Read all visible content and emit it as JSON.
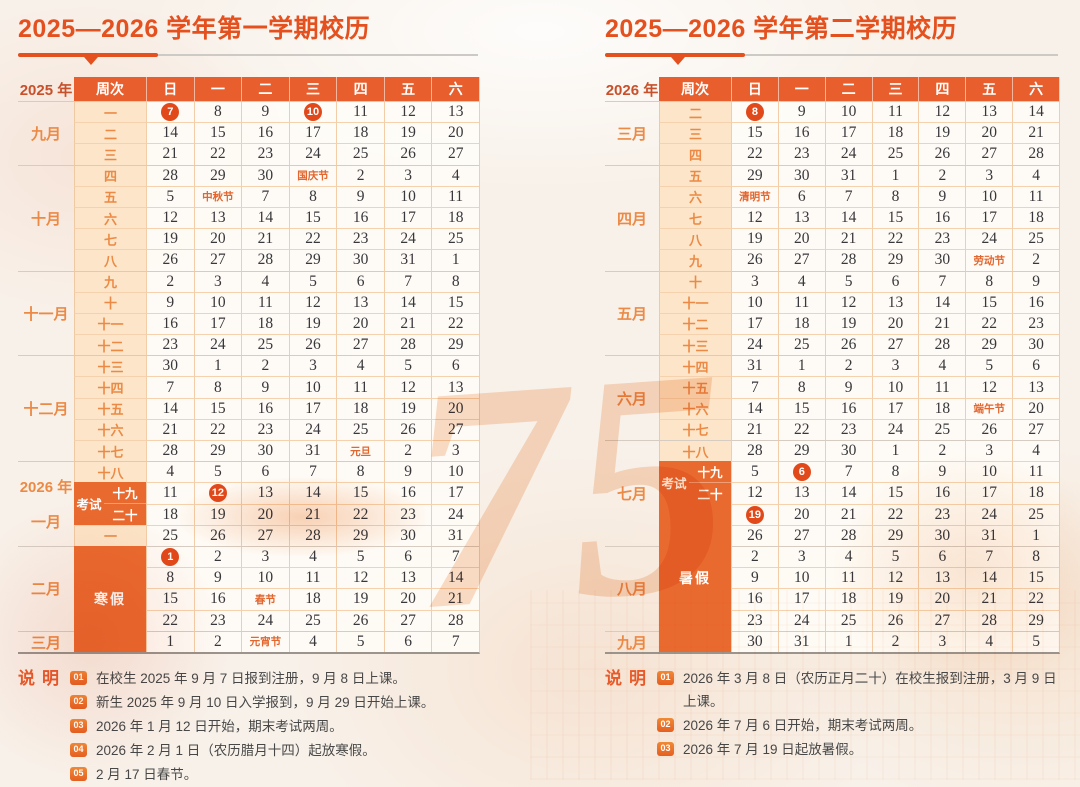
{
  "colors": {
    "accent": "#e75c2a",
    "header_bg": "#e85e2c",
    "circle_bg": "#e1491a",
    "week_bg": "#fce5c8",
    "title": "#e4511f"
  },
  "watermark": {
    "numeral": "75"
  },
  "left": {
    "title": "2025—2026 学年第一学期校历",
    "year_header": "2025 年",
    "week_header": "周次",
    "day_headers": [
      "日",
      "一",
      "二",
      "三",
      "四",
      "五",
      "六"
    ],
    "months": [
      {
        "label": [
          "九月"
        ],
        "rows": 3
      },
      {
        "label": [
          "十月"
        ],
        "rows": 5
      },
      {
        "label": [
          "十一月"
        ],
        "rows": 4
      },
      {
        "label": [
          "十二月"
        ],
        "rows": 5
      },
      {
        "label": [
          "2026 年",
          "一月"
        ],
        "rows": 4
      },
      {
        "label": [
          "二月"
        ],
        "rows": 4
      },
      {
        "label": [
          "三月"
        ],
        "rows": 1
      }
    ],
    "rows": [
      {
        "week": "一",
        "days": [
          "7",
          "8",
          "9",
          "10",
          "11",
          "12",
          "13"
        ]
      },
      {
        "week": "二",
        "days": [
          "14",
          "15",
          "16",
          "17",
          "18",
          "19",
          "20"
        ]
      },
      {
        "week": "三",
        "days": [
          "21",
          "22",
          "23",
          "24",
          "25",
          "26",
          "27"
        ]
      },
      {
        "week": "四",
        "days": [
          "28",
          "29",
          "30",
          "国庆节",
          "2",
          "3",
          "4"
        ]
      },
      {
        "week": "五",
        "days": [
          "5",
          "中秋节",
          "7",
          "8",
          "9",
          "10",
          "11"
        ]
      },
      {
        "week": "六",
        "days": [
          "12",
          "13",
          "14",
          "15",
          "16",
          "17",
          "18"
        ]
      },
      {
        "week": "七",
        "days": [
          "19",
          "20",
          "21",
          "22",
          "23",
          "24",
          "25"
        ]
      },
      {
        "week": "八",
        "days": [
          "26",
          "27",
          "28",
          "29",
          "30",
          "31",
          "1"
        ]
      },
      {
        "week": "九",
        "days": [
          "2",
          "3",
          "4",
          "5",
          "6",
          "7",
          "8"
        ]
      },
      {
        "week": "十",
        "days": [
          "9",
          "10",
          "11",
          "12",
          "13",
          "14",
          "15"
        ]
      },
      {
        "week": "十一",
        "days": [
          "16",
          "17",
          "18",
          "19",
          "20",
          "21",
          "22"
        ]
      },
      {
        "week": "十二",
        "days": [
          "23",
          "24",
          "25",
          "26",
          "27",
          "28",
          "29"
        ]
      },
      {
        "week": "十三",
        "days": [
          "30",
          "1",
          "2",
          "3",
          "4",
          "5",
          "6"
        ]
      },
      {
        "week": "十四",
        "days": [
          "7",
          "8",
          "9",
          "10",
          "11",
          "12",
          "13"
        ]
      },
      {
        "week": "十五",
        "days": [
          "14",
          "15",
          "16",
          "17",
          "18",
          "19",
          "20"
        ]
      },
      {
        "week": "十六",
        "days": [
          "21",
          "22",
          "23",
          "24",
          "25",
          "26",
          "27"
        ]
      },
      {
        "week": "十七",
        "days": [
          "28",
          "29",
          "30",
          "31",
          "元旦",
          "2",
          "3"
        ]
      },
      {
        "week": "十八",
        "days": [
          "4",
          "5",
          "6",
          "7",
          "8",
          "9",
          "10"
        ]
      },
      {
        "week": "十九",
        "days": [
          "11",
          "12",
          "13",
          "14",
          "15",
          "16",
          "17"
        ]
      },
      {
        "week": "二十",
        "days": [
          "18",
          "19",
          "20",
          "21",
          "22",
          "23",
          "24"
        ]
      },
      {
        "week": "一",
        "days": [
          "25",
          "26",
          "27",
          "28",
          "29",
          "30",
          "31"
        ]
      },
      {
        "week": null,
        "days": [
          "1",
          "2",
          "3",
          "4",
          "5",
          "6",
          "7"
        ]
      },
      {
        "week": null,
        "days": [
          "8",
          "9",
          "10",
          "11",
          "12",
          "13",
          "14"
        ]
      },
      {
        "week": null,
        "days": [
          "15",
          "16",
          "春节",
          "18",
          "19",
          "20",
          "21"
        ]
      },
      {
        "week": null,
        "days": [
          "22",
          "23",
          "24",
          "25",
          "26",
          "27",
          "28"
        ]
      },
      {
        "week": null,
        "days": [
          "1",
          "2",
          "元宵节",
          "4",
          "5",
          "6",
          "7"
        ]
      }
    ],
    "circled": [
      [
        1,
        1
      ],
      [
        1,
        4
      ],
      [
        19,
        2
      ],
      [
        22,
        1
      ]
    ],
    "exam": {
      "label": "考试",
      "rows": [
        19,
        20
      ]
    },
    "vacation": {
      "label": "寒假",
      "start": 22,
      "end": 26
    },
    "notes_title": "说明",
    "notes": [
      {
        "num": "01",
        "text": "在校生 2025 年 9 月 7 日报到注册，9 月 8 日上课。"
      },
      {
        "num": "02",
        "text": "新生 2025 年 9 月 10 日入学报到，9 月 29 日开始上课。"
      },
      {
        "num": "03",
        "text": "2026 年 1 月 12 日开始，期末考试两周。"
      },
      {
        "num": "04",
        "text": "2026 年 2 月 1 日（农历腊月十四）起放寒假。"
      },
      {
        "num": "05",
        "text": "2 月 17 日春节。"
      }
    ]
  },
  "right": {
    "title": "2025—2026 学年第二学期校历",
    "year_header": "2026 年",
    "week_header": "周次",
    "day_headers": [
      "日",
      "一",
      "二",
      "三",
      "四",
      "五",
      "六"
    ],
    "months": [
      {
        "label": [
          "三月"
        ],
        "rows": 3
      },
      {
        "label": [
          "四月"
        ],
        "rows": 5
      },
      {
        "label": [
          "五月"
        ],
        "rows": 4
      },
      {
        "label": [
          "六月"
        ],
        "rows": 4
      },
      {
        "label": [
          "七月"
        ],
        "rows": 5
      },
      {
        "label": [
          "八月"
        ],
        "rows": 4
      },
      {
        "label": [
          "九月"
        ],
        "rows": 1
      }
    ],
    "rows": [
      {
        "week": "二",
        "days": [
          "8",
          "9",
          "10",
          "11",
          "12",
          "13",
          "14"
        ]
      },
      {
        "week": "三",
        "days": [
          "15",
          "16",
          "17",
          "18",
          "19",
          "20",
          "21"
        ]
      },
      {
        "week": "四",
        "days": [
          "22",
          "23",
          "24",
          "25",
          "26",
          "27",
          "28"
        ]
      },
      {
        "week": "五",
        "days": [
          "29",
          "30",
          "31",
          "1",
          "2",
          "3",
          "4"
        ]
      },
      {
        "week": "六",
        "days": [
          "清明节",
          "6",
          "7",
          "8",
          "9",
          "10",
          "11"
        ]
      },
      {
        "week": "七",
        "days": [
          "12",
          "13",
          "14",
          "15",
          "16",
          "17",
          "18"
        ]
      },
      {
        "week": "八",
        "days": [
          "19",
          "20",
          "21",
          "22",
          "23",
          "24",
          "25"
        ]
      },
      {
        "week": "九",
        "days": [
          "26",
          "27",
          "28",
          "29",
          "30",
          "劳动节",
          "2"
        ]
      },
      {
        "week": "十",
        "days": [
          "3",
          "4",
          "5",
          "6",
          "7",
          "8",
          "9"
        ]
      },
      {
        "week": "十一",
        "days": [
          "10",
          "11",
          "12",
          "13",
          "14",
          "15",
          "16"
        ]
      },
      {
        "week": "十二",
        "days": [
          "17",
          "18",
          "19",
          "20",
          "21",
          "22",
          "23"
        ]
      },
      {
        "week": "十三",
        "days": [
          "24",
          "25",
          "26",
          "27",
          "28",
          "29",
          "30"
        ]
      },
      {
        "week": "十四",
        "days": [
          "31",
          "1",
          "2",
          "3",
          "4",
          "5",
          "6"
        ]
      },
      {
        "week": "十五",
        "days": [
          "7",
          "8",
          "9",
          "10",
          "11",
          "12",
          "13"
        ]
      },
      {
        "week": "十六",
        "days": [
          "14",
          "15",
          "16",
          "17",
          "18",
          "端午节",
          "20"
        ]
      },
      {
        "week": "十七",
        "days": [
          "21",
          "22",
          "23",
          "24",
          "25",
          "26",
          "27"
        ]
      },
      {
        "week": "十八",
        "days": [
          "28",
          "29",
          "30",
          "1",
          "2",
          "3",
          "4"
        ]
      },
      {
        "week": "十九",
        "days": [
          "5",
          "6",
          "7",
          "8",
          "9",
          "10",
          "11"
        ]
      },
      {
        "week": "二十",
        "days": [
          "12",
          "13",
          "14",
          "15",
          "16",
          "17",
          "18"
        ]
      },
      {
        "week": null,
        "days": [
          "19",
          "20",
          "21",
          "22",
          "23",
          "24",
          "25"
        ]
      },
      {
        "week": null,
        "days": [
          "26",
          "27",
          "28",
          "29",
          "30",
          "31",
          "1"
        ]
      },
      {
        "week": null,
        "days": [
          "2",
          "3",
          "4",
          "5",
          "6",
          "7",
          "8"
        ]
      },
      {
        "week": null,
        "days": [
          "9",
          "10",
          "11",
          "12",
          "13",
          "14",
          "15"
        ]
      },
      {
        "week": null,
        "days": [
          "16",
          "17",
          "18",
          "19",
          "20",
          "21",
          "22"
        ]
      },
      {
        "week": null,
        "days": [
          "23",
          "24",
          "25",
          "26",
          "27",
          "28",
          "29"
        ]
      },
      {
        "week": null,
        "days": [
          "30",
          "31",
          "1",
          "2",
          "3",
          "4",
          "5"
        ]
      }
    ],
    "circled": [
      [
        1,
        1
      ],
      [
        18,
        2
      ],
      [
        20,
        1
      ]
    ],
    "exam": {
      "label": "考试",
      "rows": [
        18,
        19
      ]
    },
    "vacation": {
      "label": "暑假",
      "start": 20,
      "end": 26
    },
    "notes_title": "说明",
    "notes": [
      {
        "num": "01",
        "text": "2026 年 3 月 8 日（农历正月二十）在校生报到注册，3 月 9 日上课。"
      },
      {
        "num": "02",
        "text": "2026 年 7 月 6 日开始，期末考试两周。"
      },
      {
        "num": "03",
        "text": "2026 年 7 月 19 日起放暑假。"
      }
    ]
  }
}
